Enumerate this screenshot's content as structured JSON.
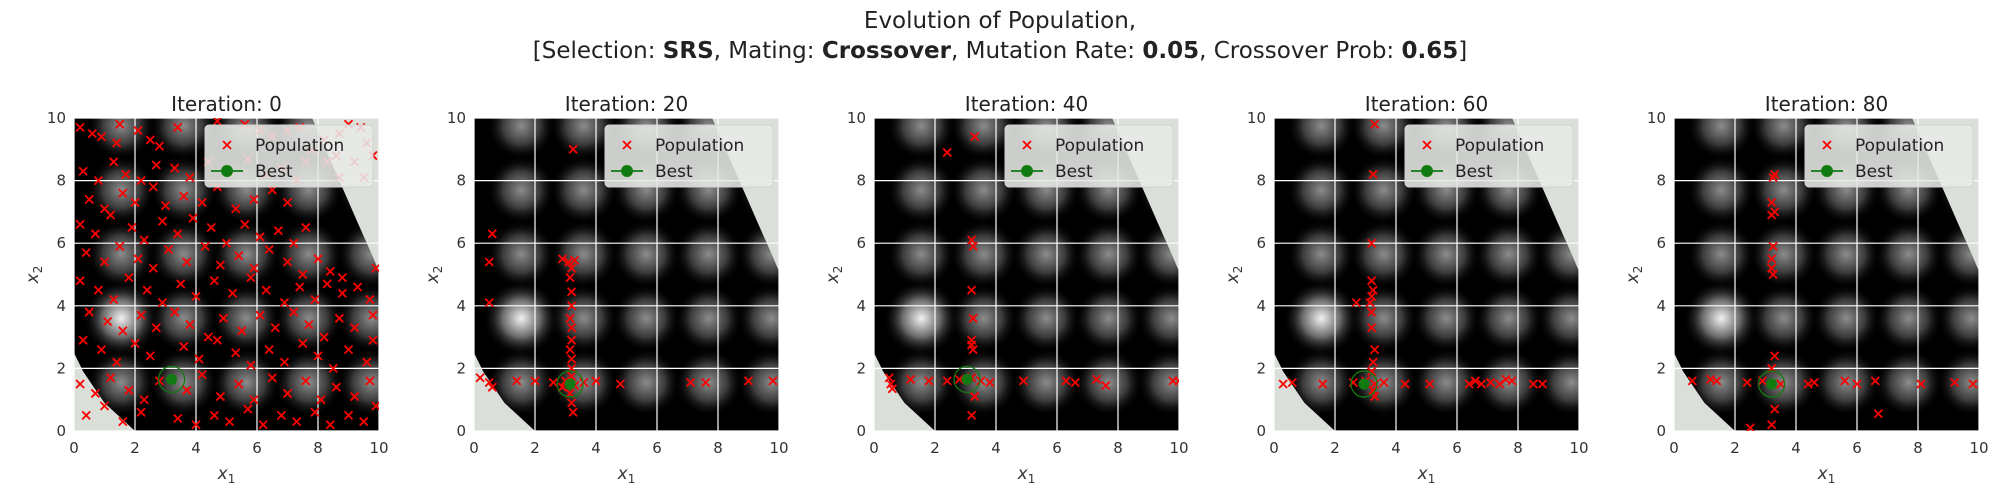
{
  "figure": {
    "title_line1": "Evolution of Population,",
    "title_line2_parts": [
      {
        "text": "[Selection: ",
        "bold": false
      },
      {
        "text": "SRS",
        "bold": true
      },
      {
        "text": ", Mating: ",
        "bold": false
      },
      {
        "text": "Crossover",
        "bold": true
      },
      {
        "text": ", Mutation Rate: ",
        "bold": false
      },
      {
        "text": "0.05",
        "bold": true
      },
      {
        "text": ", Crossover Prob: ",
        "bold": false
      },
      {
        "text": "0.65",
        "bold": true
      },
      {
        "text": "]",
        "bold": false
      }
    ]
  },
  "colors": {
    "population": "#ff0000",
    "best": "#117a11",
    "feasible_bg": "#dadfda",
    "infeasible": "#000000",
    "grid": "#ffffff"
  },
  "chart_data": [
    {
      "type": "scatter",
      "title": "Iteration: 0",
      "xlabel": "x_1",
      "ylabel": "x_2",
      "xlim": [
        0,
        10
      ],
      "ylim": [
        0,
        10
      ],
      "xticks": [
        0,
        2,
        4,
        6,
        8,
        10
      ],
      "yticks": [
        0,
        2,
        4,
        6,
        8,
        10
      ],
      "grid": true,
      "legend_position": "top-right",
      "legend": [
        {
          "label": "Population",
          "marker": "x"
        },
        {
          "label": "Best",
          "marker": "circle-line"
        }
      ],
      "best": [
        3.2,
        1.65
      ],
      "population": [
        [
          0.2,
          9.7
        ],
        [
          0.6,
          9.5
        ],
        [
          0.9,
          9.4
        ],
        [
          1.4,
          9.2
        ],
        [
          1.5,
          9.8
        ],
        [
          2.1,
          9.6
        ],
        [
          2.5,
          9.3
        ],
        [
          2.8,
          9.1
        ],
        [
          3.4,
          9.7
        ],
        [
          4.7,
          9.9
        ],
        [
          5.6,
          9.8
        ],
        [
          6.1,
          9.6
        ],
        [
          6.5,
          9.4
        ],
        [
          7.0,
          9.6
        ],
        [
          7.4,
          9.7
        ],
        [
          7.8,
          9.0
        ],
        [
          8.2,
          9.3
        ],
        [
          8.7,
          9.5
        ],
        [
          9.0,
          9.8
        ],
        [
          9.4,
          9.7
        ],
        [
          9.6,
          9.2
        ],
        [
          8.3,
          8.6
        ],
        [
          8.6,
          8.8
        ],
        [
          9.2,
          8.6
        ],
        [
          9.8,
          8.8
        ],
        [
          9.5,
          8.1
        ],
        [
          8.7,
          8.1
        ],
        [
          7.6,
          8.6
        ],
        [
          0.3,
          8.3
        ],
        [
          0.8,
          8.0
        ],
        [
          1.3,
          8.6
        ],
        [
          1.7,
          8.2
        ],
        [
          2.2,
          8.0
        ],
        [
          2.7,
          8.5
        ],
        [
          3.3,
          8.4
        ],
        [
          3.8,
          8.1
        ],
        [
          4.4,
          8.6
        ],
        [
          5.1,
          8.3
        ],
        [
          5.7,
          8.7
        ],
        [
          6.3,
          8.2
        ],
        [
          6.8,
          8.4
        ],
        [
          7.3,
          8.0
        ],
        [
          0.5,
          7.4
        ],
        [
          1.0,
          7.1
        ],
        [
          1.6,
          7.6
        ],
        [
          2.0,
          7.3
        ],
        [
          2.6,
          7.8
        ],
        [
          3.0,
          7.2
        ],
        [
          3.6,
          7.5
        ],
        [
          4.2,
          7.3
        ],
        [
          4.7,
          7.8
        ],
        [
          5.3,
          7.1
        ],
        [
          5.9,
          7.4
        ],
        [
          6.5,
          7.7
        ],
        [
          7.0,
          7.3
        ],
        [
          0.2,
          6.6
        ],
        [
          0.7,
          6.3
        ],
        [
          1.2,
          6.9
        ],
        [
          1.9,
          6.5
        ],
        [
          2.3,
          6.1
        ],
        [
          2.9,
          6.7
        ],
        [
          3.4,
          6.3
        ],
        [
          3.9,
          6.8
        ],
        [
          4.5,
          6.5
        ],
        [
          5.0,
          6.0
        ],
        [
          5.6,
          6.6
        ],
        [
          6.1,
          6.2
        ],
        [
          6.7,
          6.4
        ],
        [
          7.2,
          6.0
        ],
        [
          7.6,
          6.5
        ],
        [
          0.4,
          5.7
        ],
        [
          1.0,
          5.4
        ],
        [
          1.5,
          5.9
        ],
        [
          2.1,
          5.5
        ],
        [
          2.6,
          5.2
        ],
        [
          3.1,
          5.8
        ],
        [
          3.7,
          5.4
        ],
        [
          4.3,
          5.9
        ],
        [
          4.8,
          5.3
        ],
        [
          5.4,
          5.6
        ],
        [
          5.9,
          5.2
        ],
        [
          6.4,
          5.8
        ],
        [
          7.0,
          5.4
        ],
        [
          7.5,
          5.0
        ],
        [
          8.0,
          5.5
        ],
        [
          8.4,
          5.1
        ],
        [
          8.8,
          4.9
        ],
        [
          0.2,
          4.8
        ],
        [
          0.8,
          4.5
        ],
        [
          1.3,
          4.2
        ],
        [
          1.8,
          4.9
        ],
        [
          2.4,
          4.5
        ],
        [
          2.9,
          4.1
        ],
        [
          3.5,
          4.7
        ],
        [
          4.0,
          4.3
        ],
        [
          4.6,
          4.8
        ],
        [
          5.2,
          4.4
        ],
        [
          5.8,
          4.9
        ],
        [
          6.3,
          4.5
        ],
        [
          6.9,
          4.1
        ],
        [
          7.4,
          4.6
        ],
        [
          7.9,
          4.2
        ],
        [
          8.3,
          4.7
        ],
        [
          8.8,
          4.4
        ],
        [
          9.3,
          4.6
        ],
        [
          9.7,
          4.2
        ],
        [
          0.5,
          3.8
        ],
        [
          1.1,
          3.5
        ],
        [
          1.6,
          3.2
        ],
        [
          2.2,
          3.7
        ],
        [
          2.7,
          3.3
        ],
        [
          3.3,
          3.8
        ],
        [
          3.8,
          3.4
        ],
        [
          4.4,
          3.0
        ],
        [
          4.9,
          3.6
        ],
        [
          5.5,
          3.2
        ],
        [
          6.1,
          3.7
        ],
        [
          6.6,
          3.3
        ],
        [
          7.2,
          3.8
        ],
        [
          7.7,
          3.4
        ],
        [
          8.2,
          3.0
        ],
        [
          8.7,
          3.6
        ],
        [
          9.2,
          3.3
        ],
        [
          9.8,
          3.7
        ],
        [
          0.3,
          2.9
        ],
        [
          0.9,
          2.6
        ],
        [
          1.4,
          2.2
        ],
        [
          2.0,
          2.8
        ],
        [
          2.5,
          2.4
        ],
        [
          3.6,
          2.7
        ],
        [
          4.1,
          2.3
        ],
        [
          4.7,
          2.9
        ],
        [
          5.3,
          2.5
        ],
        [
          5.8,
          2.1
        ],
        [
          6.4,
          2.6
        ],
        [
          6.9,
          2.2
        ],
        [
          7.5,
          2.8
        ],
        [
          8.0,
          2.4
        ],
        [
          8.5,
          2.0
        ],
        [
          9.0,
          2.6
        ],
        [
          9.6,
          2.2
        ],
        [
          0.2,
          1.5
        ],
        [
          0.7,
          1.2
        ],
        [
          1.2,
          1.7
        ],
        [
          1.8,
          1.3
        ],
        [
          2.3,
          1.0
        ],
        [
          2.8,
          1.6
        ],
        [
          3.7,
          1.3
        ],
        [
          4.2,
          1.8
        ],
        [
          4.8,
          1.1
        ],
        [
          5.4,
          1.5
        ],
        [
          5.9,
          1.0
        ],
        [
          6.5,
          1.7
        ],
        [
          7.0,
          1.2
        ],
        [
          7.6,
          1.6
        ],
        [
          8.1,
          1.0
        ],
        [
          8.6,
          1.4
        ],
        [
          9.2,
          1.1
        ],
        [
          9.7,
          1.6
        ],
        [
          0.4,
          0.5
        ],
        [
          1.0,
          0.8
        ],
        [
          1.6,
          0.3
        ],
        [
          2.2,
          0.6
        ],
        [
          3.4,
          0.4
        ],
        [
          4.0,
          0.2
        ],
        [
          4.6,
          0.5
        ],
        [
          5.1,
          0.3
        ],
        [
          5.7,
          0.7
        ],
        [
          6.2,
          0.2
        ],
        [
          6.8,
          0.5
        ],
        [
          7.3,
          0.3
        ],
        [
          7.9,
          0.6
        ],
        [
          8.4,
          0.2
        ],
        [
          9.0,
          0.5
        ],
        [
          9.5,
          0.3
        ],
        [
          9.9,
          0.8
        ],
        [
          9.8,
          2.9
        ],
        [
          9.9,
          5.2
        ]
      ]
    },
    {
      "type": "scatter",
      "title": "Iteration: 20",
      "xlabel": "x_1",
      "ylabel": "x_2",
      "xlim": [
        0,
        10
      ],
      "ylim": [
        0,
        10
      ],
      "xticks": [
        0,
        2,
        4,
        6,
        8,
        10
      ],
      "yticks": [
        0,
        2,
        4,
        6,
        8,
        10
      ],
      "grid": true,
      "legend_position": "top-right",
      "legend": [
        {
          "label": "Population",
          "marker": "x"
        },
        {
          "label": "Best",
          "marker": "circle-line"
        }
      ],
      "best": [
        3.15,
        1.5
      ],
      "population": [
        [
          0.6,
          6.3
        ],
        [
          0.5,
          5.4
        ],
        [
          0.5,
          4.1
        ],
        [
          0.2,
          1.7
        ],
        [
          0.5,
          1.55
        ],
        [
          0.6,
          1.4
        ],
        [
          1.4,
          1.6
        ],
        [
          2.0,
          1.6
        ],
        [
          2.6,
          1.55
        ],
        [
          2.9,
          1.4
        ],
        [
          3.0,
          1.6
        ],
        [
          3.3,
          1.45
        ],
        [
          3.6,
          1.55
        ],
        [
          4.0,
          1.6
        ],
        [
          4.8,
          1.5
        ],
        [
          7.1,
          1.55
        ],
        [
          7.6,
          1.55
        ],
        [
          9.0,
          1.6
        ],
        [
          9.8,
          1.6
        ],
        [
          3.25,
          9.0
        ],
        [
          2.9,
          5.5
        ],
        [
          3.1,
          5.4
        ],
        [
          3.2,
          5.2
        ],
        [
          3.3,
          5.45
        ],
        [
          3.15,
          4.9
        ],
        [
          3.2,
          4.45
        ],
        [
          3.2,
          4.0
        ],
        [
          3.15,
          3.6
        ],
        [
          3.2,
          3.3
        ],
        [
          3.2,
          2.9
        ],
        [
          3.15,
          2.6
        ],
        [
          3.2,
          2.3
        ],
        [
          3.2,
          2.0
        ],
        [
          3.15,
          1.2
        ],
        [
          3.2,
          0.9
        ],
        [
          3.25,
          0.6
        ],
        [
          3.2,
          1.75
        ]
      ]
    },
    {
      "type": "scatter",
      "title": "Iteration: 40",
      "xlabel": "x_1",
      "ylabel": "x_2",
      "xlim": [
        0,
        10
      ],
      "ylim": [
        0,
        10
      ],
      "xticks": [
        0,
        2,
        4,
        6,
        8,
        10
      ],
      "yticks": [
        0,
        2,
        4,
        6,
        8,
        10
      ],
      "grid": true,
      "legend_position": "top-right",
      "legend": [
        {
          "label": "Population",
          "marker": "x"
        },
        {
          "label": "Best",
          "marker": "circle-line"
        }
      ],
      "best": [
        3.05,
        1.65
      ],
      "population": [
        [
          2.4,
          8.9
        ],
        [
          3.3,
          9.4
        ],
        [
          3.2,
          6.1
        ],
        [
          3.25,
          5.9
        ],
        [
          3.2,
          4.5
        ],
        [
          3.25,
          3.6
        ],
        [
          3.2,
          2.9
        ],
        [
          3.25,
          2.6
        ],
        [
          3.2,
          2.75
        ],
        [
          3.3,
          1.1
        ],
        [
          3.2,
          0.5
        ],
        [
          0.5,
          1.7
        ],
        [
          0.55,
          1.5
        ],
        [
          0.6,
          1.35
        ],
        [
          1.2,
          1.65
        ],
        [
          1.8,
          1.6
        ],
        [
          2.4,
          1.6
        ],
        [
          2.8,
          1.65
        ],
        [
          3.2,
          1.7
        ],
        [
          3.5,
          1.6
        ],
        [
          3.8,
          1.55
        ],
        [
          4.9,
          1.6
        ],
        [
          6.3,
          1.6
        ],
        [
          6.6,
          1.55
        ],
        [
          7.3,
          1.65
        ],
        [
          7.6,
          1.45
        ],
        [
          9.8,
          1.6
        ],
        [
          10.0,
          1.6
        ]
      ]
    },
    {
      "type": "scatter",
      "title": "Iteration: 60",
      "xlabel": "x_1",
      "ylabel": "x_2",
      "xlim": [
        0,
        10
      ],
      "ylim": [
        0,
        10
      ],
      "xticks": [
        0,
        2,
        4,
        6,
        8,
        10
      ],
      "yticks": [
        0,
        2,
        4,
        6,
        8,
        10
      ],
      "grid": true,
      "legend_position": "top-right",
      "legend": [
        {
          "label": "Population",
          "marker": "x"
        },
        {
          "label": "Best",
          "marker": "circle-line"
        }
      ],
      "best": [
        2.95,
        1.5
      ],
      "population": [
        [
          3.3,
          9.8
        ],
        [
          3.25,
          8.2
        ],
        [
          3.2,
          6.0
        ],
        [
          3.2,
          4.8
        ],
        [
          3.25,
          4.5
        ],
        [
          3.2,
          4.3
        ],
        [
          3.15,
          4.1
        ],
        [
          3.2,
          3.8
        ],
        [
          3.2,
          3.3
        ],
        [
          3.3,
          2.6
        ],
        [
          3.25,
          2.2
        ],
        [
          3.2,
          1.9
        ],
        [
          3.25,
          1.3
        ],
        [
          3.3,
          1.1
        ],
        [
          2.7,
          4.1
        ],
        [
          0.3,
          1.5
        ],
        [
          0.6,
          1.55
        ],
        [
          1.6,
          1.5
        ],
        [
          2.6,
          1.55
        ],
        [
          3.0,
          1.6
        ],
        [
          3.3,
          1.5
        ],
        [
          3.6,
          1.55
        ],
        [
          4.3,
          1.5
        ],
        [
          5.1,
          1.5
        ],
        [
          6.4,
          1.5
        ],
        [
          6.6,
          1.6
        ],
        [
          6.8,
          1.5
        ],
        [
          7.1,
          1.55
        ],
        [
          7.4,
          1.5
        ],
        [
          7.6,
          1.65
        ],
        [
          7.8,
          1.6
        ],
        [
          8.5,
          1.5
        ],
        [
          8.8,
          1.5
        ]
      ]
    },
    {
      "type": "scatter",
      "title": "Iteration: 80",
      "xlabel": "x_1",
      "ylabel": "x_2",
      "xlim": [
        0,
        10
      ],
      "ylim": [
        0,
        10
      ],
      "xticks": [
        0,
        2,
        4,
        6,
        8,
        10
      ],
      "yticks": [
        0,
        2,
        4,
        6,
        8,
        10
      ],
      "grid": true,
      "legend_position": "top-right",
      "legend": [
        {
          "label": "Population",
          "marker": "x"
        },
        {
          "label": "Best",
          "marker": "circle-line"
        }
      ],
      "best": [
        3.2,
        1.5
      ],
      "population": [
        [
          3.3,
          8.2
        ],
        [
          3.25,
          8.1
        ],
        [
          3.2,
          7.3
        ],
        [
          3.3,
          7.0
        ],
        [
          3.2,
          6.9
        ],
        [
          3.25,
          5.9
        ],
        [
          3.2,
          5.5
        ],
        [
          3.2,
          5.2
        ],
        [
          3.25,
          5.0
        ],
        [
          3.3,
          2.4
        ],
        [
          3.2,
          2.0
        ],
        [
          3.3,
          0.7
        ],
        [
          3.2,
          0.2
        ],
        [
          2.5,
          0.1
        ],
        [
          0.6,
          1.6
        ],
        [
          1.2,
          1.65
        ],
        [
          1.4,
          1.6
        ],
        [
          2.4,
          1.55
        ],
        [
          2.9,
          1.6
        ],
        [
          3.5,
          1.5
        ],
        [
          4.4,
          1.5
        ],
        [
          4.6,
          1.55
        ],
        [
          5.6,
          1.6
        ],
        [
          6.0,
          1.5
        ],
        [
          6.6,
          1.6
        ],
        [
          6.7,
          0.55
        ],
        [
          8.1,
          1.5
        ],
        [
          9.2,
          1.55
        ],
        [
          9.8,
          1.5
        ]
      ]
    }
  ]
}
